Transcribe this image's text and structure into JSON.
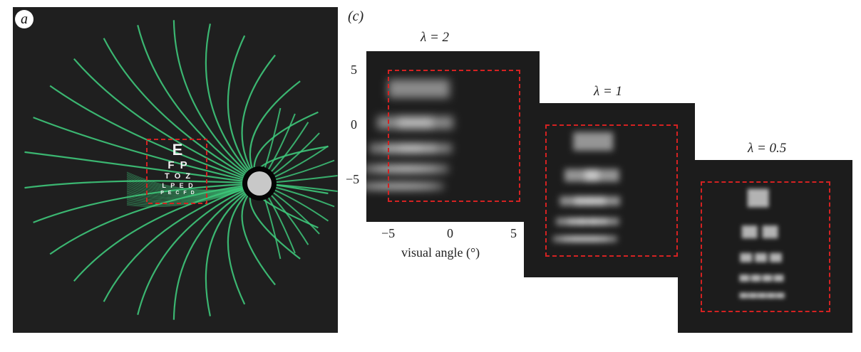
{
  "panel_a": {
    "label": "a",
    "eye_chart": {
      "rows": [
        "E",
        "F  P",
        "T O Z",
        "L P E D",
        "P E C F D"
      ]
    },
    "fiber_color": "#3ec77a",
    "dashed_box_color": "#d42222"
  },
  "panel_c": {
    "label": "(c)",
    "panels": [
      {
        "lambda_label": "λ = 2"
      },
      {
        "lambda_label": "λ = 1"
      },
      {
        "lambda_label": "λ = 0.5"
      }
    ],
    "y_ticks": [
      "5",
      "0",
      "−5"
    ],
    "x_ticks": [
      "−5",
      "0",
      "5"
    ],
    "x_axis_title": "visual angle (°)"
  }
}
